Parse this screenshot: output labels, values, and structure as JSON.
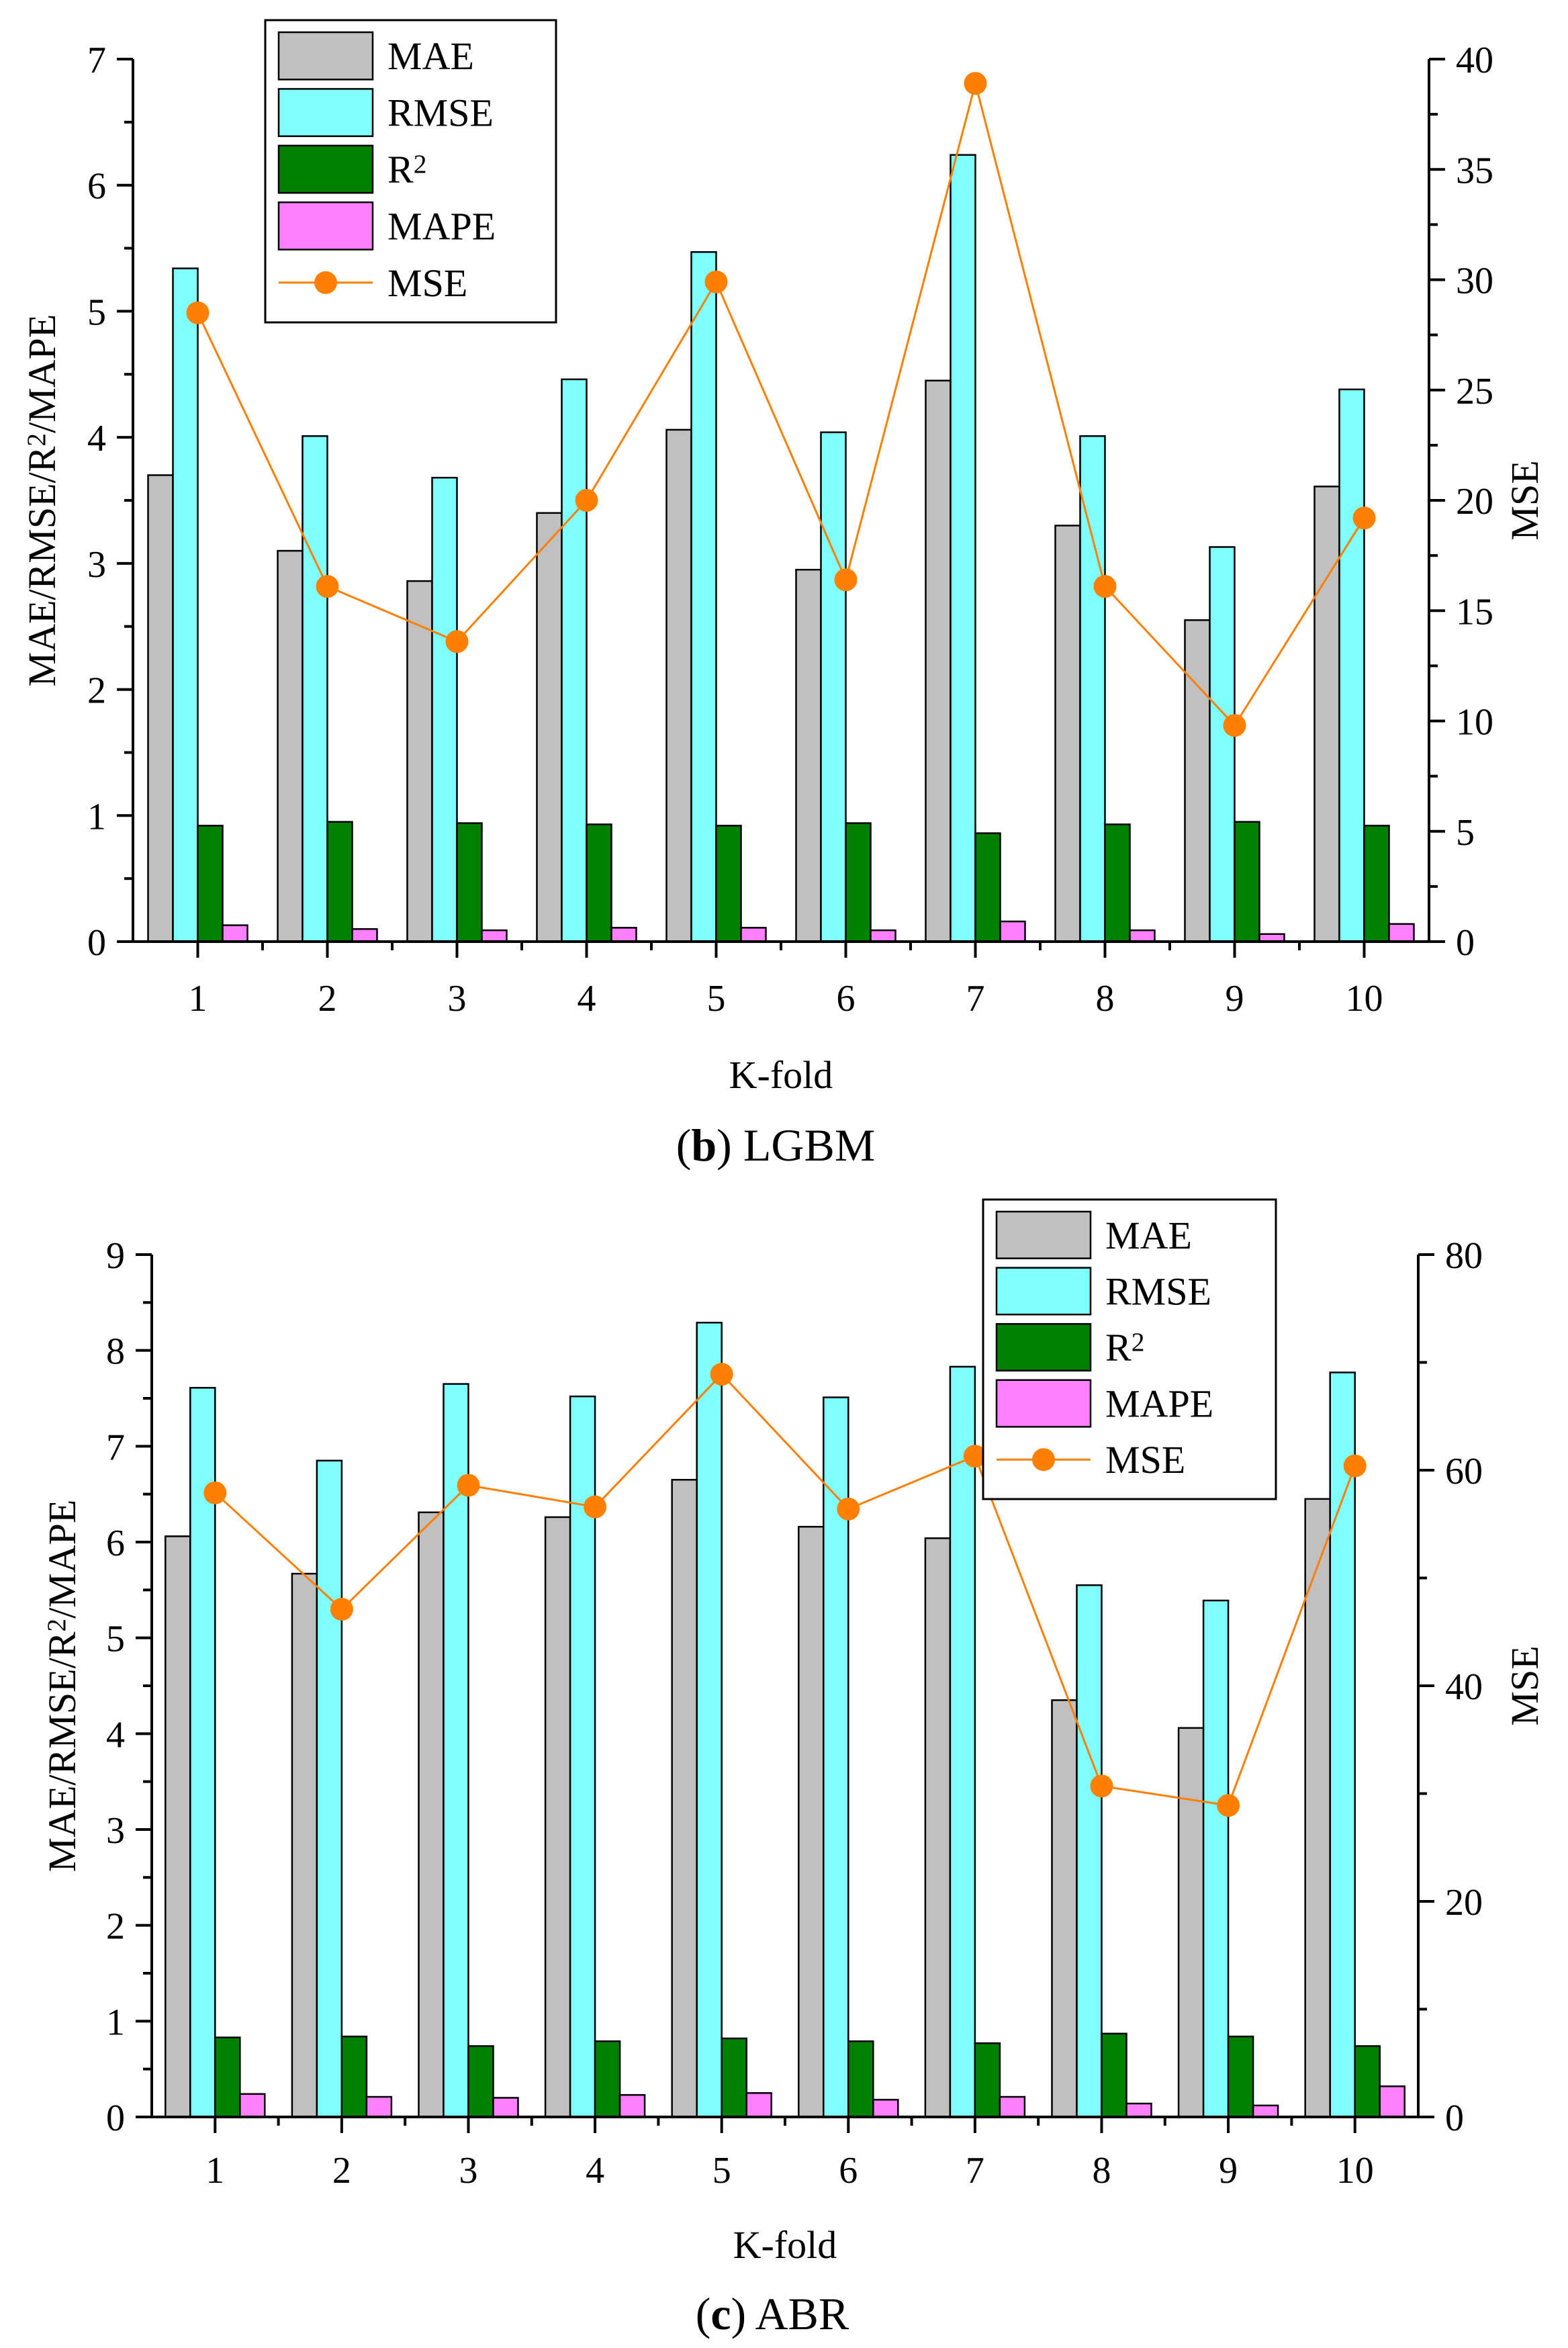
{
  "chart_data": [
    {
      "type": "bar",
      "panel_id": "b",
      "caption": "LGBM",
      "xlabel": "K-fold",
      "ylabel_left": "MAE/RMSE/R²/MAPE",
      "ylabel_right": "MSE",
      "categories": [
        "1",
        "2",
        "3",
        "4",
        "5",
        "6",
        "7",
        "8",
        "9",
        "10"
      ],
      "ylim_left": [
        0,
        7
      ],
      "yticks_left": [
        0,
        1,
        2,
        3,
        4,
        5,
        6,
        7
      ],
      "ylim_right": [
        0,
        40
      ],
      "yticks_right": [
        0,
        5,
        10,
        15,
        20,
        25,
        30,
        35,
        40
      ],
      "legend_position": "top-left",
      "series": [
        {
          "name": "MAE",
          "label_main": "MAE",
          "label_sup": "",
          "axis": "left",
          "kind": "bar",
          "color": "#c0c0c0",
          "values": [
            3.7,
            3.1,
            2.86,
            3.4,
            4.06,
            2.95,
            4.45,
            3.3,
            2.55,
            3.61
          ]
        },
        {
          "name": "RMSE",
          "label_main": "RMSE",
          "label_sup": "",
          "axis": "left",
          "kind": "bar",
          "color": "#80ffff",
          "values": [
            5.34,
            4.01,
            3.68,
            4.46,
            5.47,
            4.04,
            6.24,
            4.01,
            3.13,
            4.38
          ]
        },
        {
          "name": "R2",
          "label_main": "R",
          "label_sup": "2",
          "axis": "left",
          "kind": "bar",
          "color": "#008000",
          "values": [
            0.92,
            0.95,
            0.94,
            0.93,
            0.92,
            0.94,
            0.86,
            0.93,
            0.95,
            0.92
          ]
        },
        {
          "name": "MAPE",
          "label_main": "MAPE",
          "label_sup": "",
          "axis": "left",
          "kind": "bar",
          "color": "#ff80ff",
          "values": [
            0.13,
            0.1,
            0.09,
            0.11,
            0.11,
            0.09,
            0.16,
            0.09,
            0.06,
            0.14
          ]
        },
        {
          "name": "MSE",
          "label_main": "MSE",
          "label_sup": "",
          "axis": "right",
          "kind": "line",
          "color": "#ff8000",
          "values": [
            28.5,
            16.1,
            13.6,
            20.0,
            29.9,
            16.4,
            38.9,
            16.1,
            9.8,
            19.2
          ]
        }
      ]
    },
    {
      "type": "bar",
      "panel_id": "c",
      "caption": "ABR",
      "xlabel": "K-fold",
      "ylabel_left": "MAE/RMSE/R²/MAPE",
      "ylabel_right": "MSE",
      "categories": [
        "1",
        "2",
        "3",
        "4",
        "5",
        "6",
        "7",
        "8",
        "9",
        "10"
      ],
      "ylim_left": [
        0,
        9
      ],
      "yticks_left": [
        0,
        1,
        2,
        3,
        4,
        5,
        6,
        7,
        8,
        9
      ],
      "ylim_right": [
        0,
        80
      ],
      "yticks_right": [
        0,
        20,
        40,
        60,
        80
      ],
      "legend_position": "top-right",
      "series": [
        {
          "name": "MAE",
          "label_main": "MAE",
          "label_sup": "",
          "axis": "left",
          "kind": "bar",
          "color": "#c0c0c0",
          "values": [
            6.06,
            5.67,
            6.31,
            6.26,
            6.65,
            6.16,
            6.04,
            4.35,
            4.06,
            6.45
          ]
        },
        {
          "name": "RMSE",
          "label_main": "RMSE",
          "label_sup": "",
          "axis": "left",
          "kind": "bar",
          "color": "#80ffff",
          "values": [
            7.61,
            6.85,
            7.65,
            7.52,
            8.29,
            7.51,
            7.83,
            5.55,
            5.39,
            7.77
          ]
        },
        {
          "name": "R2",
          "label_main": "R",
          "label_sup": "2",
          "axis": "left",
          "kind": "bar",
          "color": "#008000",
          "values": [
            0.83,
            0.84,
            0.74,
            0.79,
            0.82,
            0.79,
            0.77,
            0.87,
            0.84,
            0.74
          ]
        },
        {
          "name": "MAPE",
          "label_main": "MAPE",
          "label_sup": "",
          "axis": "left",
          "kind": "bar",
          "color": "#ff80ff",
          "values": [
            0.24,
            0.21,
            0.2,
            0.23,
            0.25,
            0.18,
            0.21,
            0.14,
            0.12,
            0.32
          ]
        },
        {
          "name": "MSE",
          "label_main": "MSE",
          "label_sup": "",
          "axis": "right",
          "kind": "line",
          "color": "#ff8000",
          "values": [
            57.9,
            47.1,
            58.6,
            56.6,
            68.9,
            56.4,
            61.3,
            30.7,
            28.9,
            60.4
          ]
        }
      ]
    }
  ]
}
